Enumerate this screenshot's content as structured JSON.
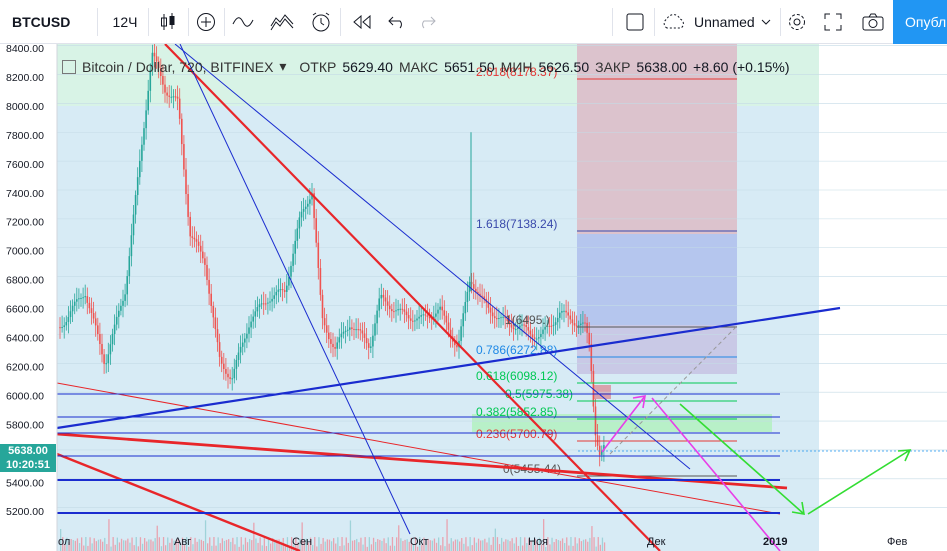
{
  "toolbar": {
    "symbol": "BTCUSD",
    "interval": "12Ч",
    "layout_name": "Unnamed",
    "publish_label": "Опубл"
  },
  "legend": {
    "title": "Bitcoin / Dollar, 720, BITFINEX",
    "open_label": "ОТКР",
    "open_value": "5629.40",
    "high_label": "МАКС",
    "high_value": "5651.50",
    "low_label": "МИН",
    "low_value": "5626.50",
    "close_label": "ЗАКР",
    "close_value": "5638.00",
    "change": "+8.60 (+0.15%)"
  },
  "price_tag": {
    "price": "5638.00",
    "time": "10:20:51"
  },
  "y_axis": [
    "8400.00",
    "8200.00",
    "8000.00",
    "7800.00",
    "7600.00",
    "7400.00",
    "7200.00",
    "7000.00",
    "6800.00",
    "6600.00",
    "6400.00",
    "6200.00",
    "6000.00",
    "5800.00",
    "5600.00",
    "5400.00",
    "5200.00"
  ],
  "x_axis": [
    "ол",
    "Авг",
    "Сен",
    "Окт",
    "Ноя",
    "Дек",
    "2019",
    "Фев"
  ],
  "fib_levels": [
    {
      "label": "2.618(8178.37)",
      "color": "#e53935"
    },
    {
      "label": "1.618(7138.24)",
      "color": "#3949ab"
    },
    {
      "label": "1(6495.)",
      "color": "#555555"
    },
    {
      "label": "0.786(6272.88)",
      "color": "#1e88e5"
    },
    {
      "label": "0.618(6098.12)",
      "color": "#00c853"
    },
    {
      "label": "0.5(5975.38)",
      "color": "#00c853"
    },
    {
      "label": "0.382(5852.85)",
      "color": "#00c853"
    },
    {
      "label": "0.236(5700.79)",
      "color": "#e53935"
    },
    {
      "label": "0(5455.44)",
      "color": "#555555"
    }
  ],
  "colors": {
    "up": "#26a69a",
    "down": "#ef5350",
    "accent": "#2196f3",
    "trend_red": "#e8262a",
    "trend_blue": "#1a2ccf"
  }
}
